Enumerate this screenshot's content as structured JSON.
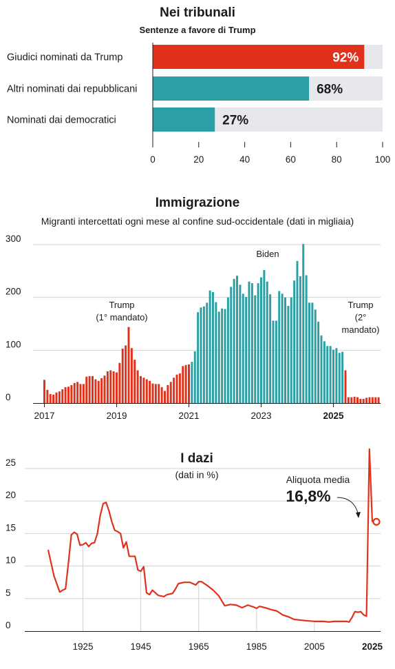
{
  "chart_data": [
    {
      "type": "bar",
      "orientation": "horizontal",
      "title": "Nei tribunali",
      "subtitle": "Sentenze a favore di Trump",
      "categories": [
        "Giudici nominati da Trump",
        "Altri nominati dai repubblicani",
        "Nominati dai democratici"
      ],
      "values": [
        92,
        68,
        27
      ],
      "value_labels": [
        "92%",
        "68%",
        "27%"
      ],
      "bar_colors": [
        "#e0311b",
        "#2aa0a4",
        "#2aa0a4"
      ],
      "value_label_colors": [
        "#ffffff",
        "#1a1a1a",
        "#1a1a1a"
      ],
      "background_bar_color": "#e6e8eb",
      "xlim": [
        0,
        100
      ],
      "xticks": [
        "0",
        "20",
        "40",
        "60",
        "80",
        "100"
      ]
    },
    {
      "type": "bar",
      "title": "Immigrazione",
      "subtitle": "Migranti intercettati ogni mese al confine sud-occidentale (dati in migliaia)",
      "ylim": [
        0,
        310
      ],
      "yticks": [
        "0",
        "100",
        "200",
        "300"
      ],
      "xticks": [
        "2017",
        "2019",
        "2021",
        "2023",
        "2025"
      ],
      "grid": true,
      "annotations": [
        "Trump",
        "(1° mandato)",
        "Biden",
        "Trump",
        "(2°",
        "mandato)"
      ],
      "colors": {
        "trump": "#e0311b",
        "biden": "#2aa0a4"
      },
      "series": [
        {
          "values": [
            44,
            25,
            17,
            16,
            20,
            22,
            26,
            30,
            31,
            34,
            38,
            40,
            36,
            36,
            50,
            51,
            51,
            45,
            42,
            47,
            52,
            60,
            62,
            60,
            58,
            76,
            103,
            109,
            144,
            104,
            82,
            62,
            51,
            48,
            45,
            42,
            37,
            36,
            36,
            30,
            23,
            34,
            40,
            48,
            54,
            56,
            70,
            72,
            73
          ]
        },
        {
          "values": [
            78,
            98,
            172,
            181,
            183,
            190,
            213,
            210,
            191,
            173,
            179,
            178,
            200,
            220,
            235,
            241,
            224,
            207,
            201,
            230,
            227,
            204,
            227,
            238,
            252,
            230,
            206,
            156,
            156,
            212,
            207,
            200,
            184,
            200,
            232,
            269,
            240,
            301,
            242,
            190,
            190,
            177,
            154,
            128,
            117,
            108,
            108,
            101,
            104,
            95,
            97
          ]
        },
        {
          "values": [
            62,
            11,
            11,
            12,
            11,
            8,
            8,
            10,
            11,
            11,
            11,
            11
          ]
        }
      ]
    },
    {
      "type": "line",
      "title": "I dazi",
      "subtitle": "(dati in %)",
      "ylim": [
        0,
        28
      ],
      "yticks": [
        "0",
        "5",
        "10",
        "15",
        "20",
        "25"
      ],
      "xticks": [
        "1925",
        "1945",
        "1965",
        "1985",
        "2005",
        "2025"
      ],
      "x_range": [
        1903,
        2027
      ],
      "annotation_label": "Aliquota media",
      "annotation_value": "16,8%",
      "color": "#e0311b",
      "series": [
        {
          "x": [
            1913,
            1915,
            1917,
            1918,
            1919,
            1920,
            1921,
            1922,
            1923,
            1924,
            1925,
            1926,
            1927,
            1928,
            1929,
            1930,
            1931,
            1932,
            1933,
            1934,
            1935,
            1936,
            1937,
            1938,
            1939,
            1940,
            1941,
            1942,
            1943,
            1944,
            1945,
            1946,
            1947,
            1948,
            1949,
            1950,
            1951,
            1952,
            1953,
            1954,
            1955,
            1956,
            1957,
            1958,
            1960,
            1962,
            1964,
            1965,
            1966,
            1968,
            1970,
            1972,
            1974,
            1976,
            1978,
            1980,
            1982,
            1984,
            1985,
            1986,
            1988,
            1990,
            1992,
            1994,
            1996,
            1998,
            2000,
            2002,
            2005,
            2008,
            2010,
            2012,
            2014,
            2016,
            2017,
            2018,
            2019,
            2020,
            2021,
            2022,
            2023,
            2024,
            2025
          ],
          "y": [
            12.5,
            8.5,
            6.0,
            6.3,
            6.5,
            10.5,
            14.8,
            15.2,
            14.9,
            13.2,
            13.3,
            13.6,
            13.0,
            13.5,
            13.6,
            15.0,
            17.8,
            19.6,
            19.8,
            18.5,
            16.8,
            15.5,
            15.3,
            15.0,
            12.8,
            13.7,
            11.5,
            11.5,
            11.5,
            9.4,
            9.2,
            9.9,
            5.9,
            5.6,
            6.3,
            5.9,
            5.5,
            5.4,
            5.3,
            5.6,
            5.7,
            5.8,
            6.5,
            7.3,
            7.5,
            7.5,
            7.1,
            7.6,
            7.6,
            7.0,
            6.3,
            5.4,
            3.9,
            4.1,
            4.0,
            3.6,
            4.0,
            3.7,
            3.5,
            3.8,
            3.6,
            3.3,
            3.1,
            2.5,
            2.2,
            1.8,
            1.7,
            1.6,
            1.5,
            1.5,
            1.4,
            1.5,
            1.5,
            1.5,
            1.4,
            2.1,
            3.0,
            2.9,
            3.0,
            2.5,
            2.3,
            28.0,
            16.8
          ]
        }
      ]
    }
  ]
}
